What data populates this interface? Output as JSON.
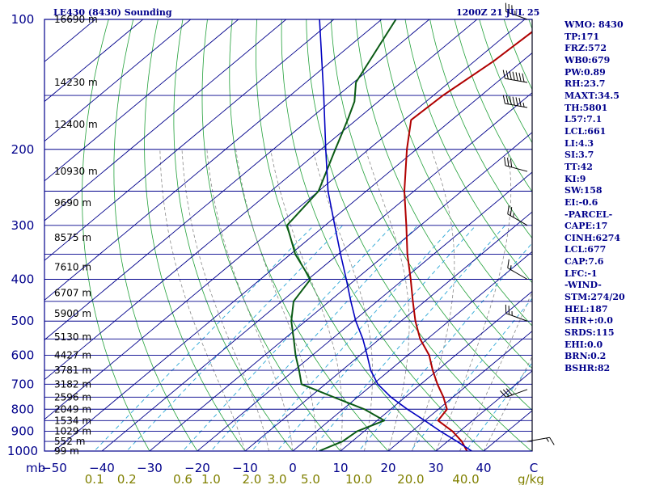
{
  "header": {
    "station_title": "LE430 (8430) Sounding",
    "time_title": "1200Z 21 JUL 25"
  },
  "indices": [
    "WMO: 8430",
    "TP:171",
    "FRZ:572",
    "WB0:679",
    "PW:0.89",
    "RH:23.7",
    "MAXT:34.5",
    "TH:5801",
    "L57:7.1",
    "LCL:661",
    "LI:4.3",
    "SI:3.7",
    "TT:42",
    "KI:9",
    "SW:158",
    "EI:-0.6",
    "-PARCEL-",
    "CAPE:17",
    "CINH:6274",
    "LCL:677",
    "CAP:7.6",
    "LFC:-1",
    "-WIND-",
    "STM:274/20",
    "HEL:187",
    "SHR+:0.0",
    "SRDS:115",
    "EHI:0.0",
    "BRN:0.2",
    "BSHR:82"
  ],
  "colors": {
    "frame": "#00008b",
    "isobar": "#00008b",
    "isotherm": "#00008b",
    "dry_adiabat": "#22a03a",
    "moist_adiabat": "#8a8a8a",
    "mixing_ratio": "#2aa6d6",
    "temperature": "#b00000",
    "dewpoint": "#0a5a14",
    "parcel": "#0000c0",
    "wind_barb": "#000000",
    "mixing_label": "#808000"
  },
  "chart_data": {
    "type": "skew-t",
    "title": "LE430 (8430) Sounding",
    "pressure_axis": {
      "unit": "mb",
      "range": [
        1000,
        100
      ],
      "ticks": [
        100,
        200,
        300,
        400,
        500,
        600,
        700,
        800,
        900,
        1000
      ]
    },
    "temperature_axis": {
      "unit": "C",
      "range": [
        -50,
        40
      ],
      "ticks": [
        -50,
        -40,
        -30,
        -20,
        -10,
        0,
        10,
        20,
        30,
        40
      ]
    },
    "mixing_ratio_axis": {
      "unit": "g/kg",
      "labels": [
        "0.1",
        "0.2",
        "0.6",
        "1.0",
        "2.0",
        "3.0",
        "5.0",
        "10.0",
        "20.0",
        "40.0"
      ],
      "values": [
        0.1,
        0.2,
        0.6,
        1.0,
        2.0,
        3.0,
        5.0,
        10.0,
        20.0,
        40.0
      ]
    },
    "height_labels": [
      {
        "p": 100,
        "label": "16690 m"
      },
      {
        "p": 140,
        "label": "14230 m"
      },
      {
        "p": 175,
        "label": "12400 m"
      },
      {
        "p": 225,
        "label": "10930 m"
      },
      {
        "p": 266,
        "label": "9690 m"
      },
      {
        "p": 320,
        "label": "8575 m"
      },
      {
        "p": 375,
        "label": "7610 m"
      },
      {
        "p": 430,
        "label": "6707 m"
      },
      {
        "p": 480,
        "label": "5900 m"
      },
      {
        "p": 545,
        "label": "5130 m"
      },
      {
        "p": 600,
        "label": "4427 m"
      },
      {
        "p": 650,
        "label": "3781 m"
      },
      {
        "p": 700,
        "label": "3182 m"
      },
      {
        "p": 750,
        "label": "2596 m"
      },
      {
        "p": 800,
        "label": "2049 m"
      },
      {
        "p": 850,
        "label": "1534 m"
      },
      {
        "p": 900,
        "label": "1029 m"
      },
      {
        "p": 950,
        "label": "552 m"
      },
      {
        "p": 1000,
        "label": "99 m"
      }
    ],
    "series": [
      {
        "name": "Temperature",
        "points": [
          {
            "p": 1000,
            "t": 36.5
          },
          {
            "p": 950,
            "t": 33.0
          },
          {
            "p": 900,
            "t": 28.5
          },
          {
            "p": 850,
            "t": 22.8
          },
          {
            "p": 800,
            "t": 21.8
          },
          {
            "p": 750,
            "t": 18.0
          },
          {
            "p": 700,
            "t": 13.5
          },
          {
            "p": 650,
            "t": 9.0
          },
          {
            "p": 600,
            "t": 4.5
          },
          {
            "p": 550,
            "t": -1.5
          },
          {
            "p": 500,
            "t": -7.0
          },
          {
            "p": 450,
            "t": -12.5
          },
          {
            "p": 400,
            "t": -18.5
          },
          {
            "p": 350,
            "t": -25.5
          },
          {
            "p": 300,
            "t": -33.0
          },
          {
            "p": 250,
            "t": -42.0
          },
          {
            "p": 200,
            "t": -52.0
          },
          {
            "p": 171,
            "t": -58.5
          },
          {
            "p": 150,
            "t": -58.0
          },
          {
            "p": 125,
            "t": -56.0
          },
          {
            "p": 100,
            "t": -55.0
          }
        ]
      },
      {
        "name": "Dewpoint",
        "points": [
          {
            "p": 1000,
            "t": 5.5
          },
          {
            "p": 950,
            "t": 8.0
          },
          {
            "p": 900,
            "t": 8.5
          },
          {
            "p": 850,
            "t": 11.5
          },
          {
            "p": 800,
            "t": 4.5
          },
          {
            "p": 750,
            "t": -5.0
          },
          {
            "p": 700,
            "t": -15.0
          },
          {
            "p": 650,
            "t": -19.0
          },
          {
            "p": 600,
            "t": -23.5
          },
          {
            "p": 550,
            "t": -28.0
          },
          {
            "p": 500,
            "t": -33.0
          },
          {
            "p": 450,
            "t": -37.5
          },
          {
            "p": 400,
            "t": -39.5
          },
          {
            "p": 350,
            "t": -49.0
          },
          {
            "p": 300,
            "t": -58.0
          },
          {
            "p": 250,
            "t": -60.0
          },
          {
            "p": 200,
            "t": -67.0
          },
          {
            "p": 170,
            "t": -72.0
          },
          {
            "p": 155,
            "t": -75.0
          },
          {
            "p": 140,
            "t": -79.5
          },
          {
            "p": 100,
            "t": -87.0
          }
        ]
      },
      {
        "name": "Parcel",
        "points": [
          {
            "p": 1000,
            "t": 37.5
          },
          {
            "p": 950,
            "t": 32.0
          },
          {
            "p": 900,
            "t": 26.0
          },
          {
            "p": 850,
            "t": 20.0
          },
          {
            "p": 800,
            "t": 13.5
          },
          {
            "p": 750,
            "t": 7.0
          },
          {
            "p": 700,
            "t": 1.0
          },
          {
            "p": 650,
            "t": -4.0
          },
          {
            "p": 600,
            "t": -8.5
          },
          {
            "p": 550,
            "t": -13.5
          },
          {
            "p": 500,
            "t": -19.5
          },
          {
            "p": 450,
            "t": -25.5
          },
          {
            "p": 400,
            "t": -32.0
          },
          {
            "p": 350,
            "t": -39.5
          },
          {
            "p": 300,
            "t": -48.0
          },
          {
            "p": 250,
            "t": -58.0
          },
          {
            "p": 200,
            "t": -69.0
          },
          {
            "p": 150,
            "t": -83.0
          },
          {
            "p": 100,
            "t": -103.0
          }
        ]
      }
    ],
    "wind_barbs": [
      {
        "p": 100,
        "dir": 290,
        "speed": 35
      },
      {
        "p": 140,
        "dir": 280,
        "speed": 70
      },
      {
        "p": 160,
        "dir": 280,
        "speed": 65
      },
      {
        "p": 225,
        "dir": 285,
        "speed": 30
      },
      {
        "p": 300,
        "dir": 300,
        "speed": 25
      },
      {
        "p": 400,
        "dir": 300,
        "speed": 15
      },
      {
        "p": 500,
        "dir": 290,
        "speed": 25
      },
      {
        "p": 720,
        "dir": 250,
        "speed": 30
      },
      {
        "p": 950,
        "dir": 80,
        "speed": 15
      }
    ]
  }
}
